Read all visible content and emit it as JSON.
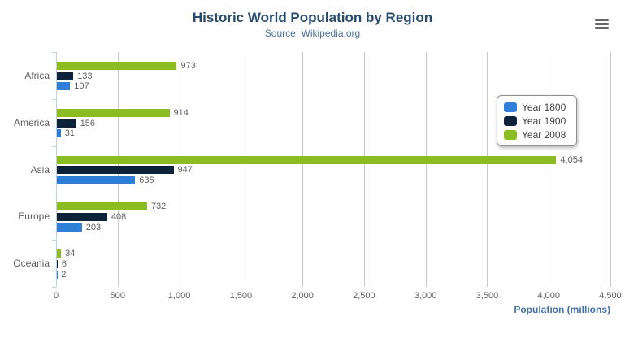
{
  "title": "Historic World Population by Region",
  "subtitle": "Source: Wikipedia.org",
  "context_menu": {
    "icon": "hamburger-icon"
  },
  "colors": {
    "title": "#274b6d",
    "subtitle": "#4d759e",
    "axis_title": "#4572a7",
    "axis_labels": "#606060",
    "data_labels": "#606060",
    "gridline": "#c9c9c9",
    "category_axis_line": "#c0d0e0",
    "legend_border": "#909090",
    "menu_icon": "#666666",
    "background": "#ffffff",
    "series_blue": "#2f7ed8",
    "series_navy": "#0d233a",
    "series_green": "#8bbc21"
  },
  "chart_data": {
    "type": "bar",
    "title": "Historic World Population by Region",
    "subtitle": "Source: Wikipedia.org",
    "categories": [
      "Africa",
      "America",
      "Asia",
      "Europe",
      "Oceania"
    ],
    "series": [
      {
        "name": "Year 1800",
        "color": "#2f7ed8",
        "values": [
          107,
          31,
          635,
          203,
          2
        ]
      },
      {
        "name": "Year 1900",
        "color": "#0d233a",
        "values": [
          133,
          156,
          947,
          408,
          6
        ]
      },
      {
        "name": "Year 2008",
        "color": "#8bbc21",
        "values": [
          973,
          914,
          4054,
          732,
          34
        ]
      }
    ],
    "display_order_top_to_bottom": [
      "Year 2008",
      "Year 1900",
      "Year 1800"
    ],
    "xlabel": "Population (millions)",
    "ylabel": "",
    "xlim": [
      0,
      4500
    ],
    "tick_interval": 500,
    "tick_labels": [
      "0",
      "500",
      "1,000",
      "1,500",
      "2,000",
      "2,500",
      "3,000",
      "3,500",
      "4,000",
      "4,500"
    ],
    "grid": true,
    "legend_position": "right",
    "data_label_format": "thousands-comma"
  }
}
